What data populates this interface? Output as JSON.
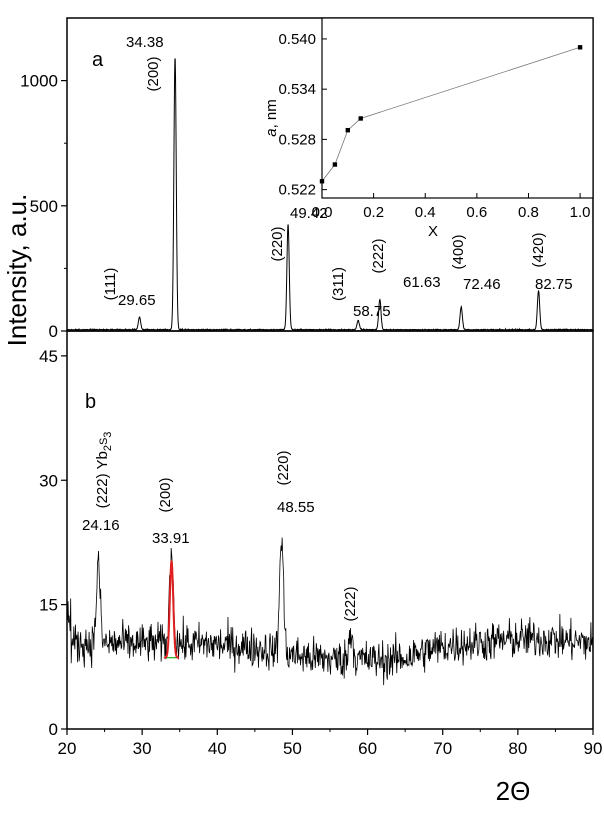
{
  "figure": {
    "y_axis_label": "Intensity, a.u.",
    "x_axis_label": "2Θ"
  },
  "chart_data": [
    {
      "type": "line",
      "panel": "a",
      "xlim": [
        20,
        90
      ],
      "ylim": [
        0,
        1250
      ],
      "yticks": [
        0,
        500,
        1000
      ],
      "yticklabels": [
        "0",
        "500",
        "1000"
      ],
      "peaks": [
        {
          "x": 29.65,
          "y": 55,
          "hkl": "(111)",
          "label": "29.65"
        },
        {
          "x": 34.38,
          "y": 1095,
          "hkl": "(200)",
          "label": "34.38"
        },
        {
          "x": 49.42,
          "y": 425,
          "hkl": "(220)",
          "label": "49.42"
        },
        {
          "x": 58.75,
          "y": 40,
          "hkl": "(311)",
          "label": "58.75"
        },
        {
          "x": 61.63,
          "y": 125,
          "hkl": "(222)",
          "label": "61.63"
        },
        {
          "x": 72.46,
          "y": 95,
          "hkl": "(400)",
          "label": "72.46"
        },
        {
          "x": 82.75,
          "y": 160,
          "hkl": "(420)",
          "label": "82.75"
        }
      ],
      "inset": {
        "type": "scatter",
        "xlabel": "X",
        "ylabel": "a, nm",
        "xlim": [
          0.0,
          1.05
        ],
        "ylim": [
          0.521,
          0.5425
        ],
        "xticks": [
          0.0,
          0.2,
          0.4,
          0.6,
          0.8,
          1.0
        ],
        "xticklabels": [
          "0.0",
          "0.2",
          "0.4",
          "0.6",
          "0.8",
          "1.0"
        ],
        "yticks": [
          0.522,
          0.528,
          0.534,
          0.54
        ],
        "yticklabels": [
          "0.522",
          "0.528",
          "0.534",
          "0.540"
        ],
        "x": [
          0.0,
          0.05,
          0.1,
          0.15,
          1.0
        ],
        "y": [
          0.523,
          0.525,
          0.5291,
          0.5305,
          0.539
        ]
      }
    },
    {
      "type": "line",
      "panel": "b",
      "xlim": [
        20,
        90
      ],
      "ylim": [
        0,
        48
      ],
      "xticks": [
        20,
        30,
        40,
        50,
        60,
        70,
        80,
        90
      ],
      "xticklabels": [
        "20",
        "30",
        "40",
        "50",
        "60",
        "70",
        "80",
        "90"
      ],
      "yticks": [
        0,
        15,
        30,
        45
      ],
      "yticklabels": [
        "0",
        "15",
        "30",
        "45"
      ],
      "peaks": [
        {
          "x": 24.16,
          "y": 20,
          "hkl": "(222) Yb2S3",
          "label": "24.16"
        },
        {
          "x": 33.91,
          "y": 21.5,
          "hkl": "(200)",
          "label": "33.91"
        },
        {
          "x": 48.55,
          "y": 23.5,
          "hkl": "(220)",
          "label": "48.55"
        },
        {
          "x": 57.8,
          "y": 12,
          "hkl": "(222)",
          "label": ""
        }
      ]
    }
  ]
}
